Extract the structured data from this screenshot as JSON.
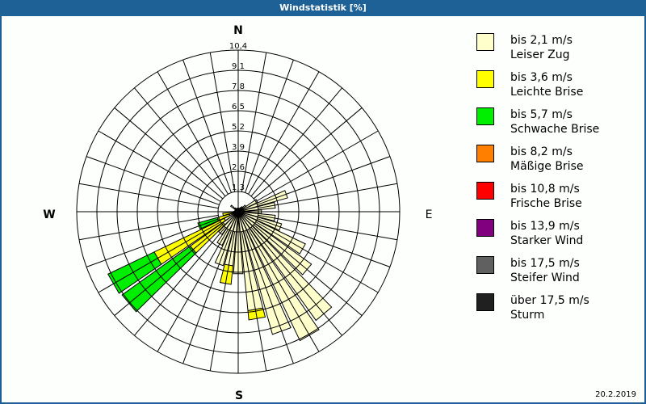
{
  "window": {
    "title": "Windstatistik [%]"
  },
  "footer": {
    "date": "20.2.2019"
  },
  "compass": {
    "n": "N",
    "e": "E",
    "s": "S",
    "w": "W"
  },
  "legend": [
    {
      "range": "bis 2,1 m/s",
      "name": "Leiser Zug",
      "color": "#ffffcc"
    },
    {
      "range": "bis 3,6 m/s",
      "name": "Leichte Brise",
      "color": "#ffff00"
    },
    {
      "range": "bis 5,7 m/s",
      "name": "Schwache Brise",
      "color": "#00ee00"
    },
    {
      "range": "bis 8,2 m/s",
      "name": "Mäßige Brise",
      "color": "#ff8000"
    },
    {
      "range": "bis 10,8 m/s",
      "name": "Frische Brise",
      "color": "#ff0000"
    },
    {
      "range": "bis 13,9 m/s",
      "name": "Starker Wind",
      "color": "#800080"
    },
    {
      "range": "bis 17,5 m/s",
      "name": "Steifer Wind",
      "color": "#606060"
    },
    {
      "range": "über 17,5 m/s",
      "name": "Sturm",
      "color": "#202020"
    }
  ],
  "chart_data": {
    "type": "polar-bar",
    "title": "Windstatistik [%]",
    "unit": "%",
    "radial_ticks": [
      "1,3",
      "2,6",
      "3,9",
      "5,2",
      "6,5",
      "7,8",
      "9,1",
      "10,4"
    ],
    "rmax": 10.4,
    "sector_width_deg": 10,
    "series": [
      "bis 2,1 m/s",
      "bis 3,6 m/s",
      "bis 5,7 m/s",
      "bis 8,2 m/s",
      "bis 10,8 m/s",
      "bis 13,9 m/s",
      "bis 17,5 m/s",
      "über 17,5 m/s"
    ],
    "directions": [
      {
        "deg": 0,
        "values": [
          0.2,
          0,
          0,
          0,
          0,
          0,
          0,
          0
        ]
      },
      {
        "deg": 10,
        "values": [
          0.2,
          0,
          0,
          0,
          0,
          0,
          0,
          0
        ]
      },
      {
        "deg": 20,
        "values": [
          0.2,
          0,
          0,
          0,
          0,
          0,
          0,
          0
        ]
      },
      {
        "deg": 30,
        "values": [
          0.3,
          0,
          0,
          0,
          0,
          0,
          0,
          0
        ]
      },
      {
        "deg": 40,
        "values": [
          0.4,
          0,
          0,
          0,
          0,
          0,
          0,
          0
        ]
      },
      {
        "deg": 50,
        "values": [
          0.6,
          0,
          0,
          0,
          0,
          0,
          0,
          0
        ]
      },
      {
        "deg": 60,
        "values": [
          1.4,
          0,
          0,
          0,
          0,
          0,
          0,
          0
        ]
      },
      {
        "deg": 70,
        "values": [
          3.3,
          0,
          0,
          0,
          0,
          0,
          0,
          0
        ]
      },
      {
        "deg": 80,
        "values": [
          2.4,
          0,
          0,
          0,
          0,
          0,
          0,
          0
        ]
      },
      {
        "deg": 90,
        "values": [
          1.5,
          0,
          0,
          0,
          0,
          0,
          0,
          0
        ]
      },
      {
        "deg": 100,
        "values": [
          2.4,
          0,
          0,
          0,
          0,
          0,
          0,
          0
        ]
      },
      {
        "deg": 110,
        "values": [
          2.9,
          0,
          0,
          0,
          0,
          0,
          0,
          0
        ]
      },
      {
        "deg": 120,
        "values": [
          4.8,
          0,
          0,
          0,
          0,
          0,
          0,
          0
        ]
      },
      {
        "deg": 130,
        "values": [
          5.8,
          0,
          0,
          0,
          0,
          0,
          0,
          0
        ]
      },
      {
        "deg": 140,
        "values": [
          8.6,
          0,
          0,
          0,
          0,
          0,
          0,
          0
        ]
      },
      {
        "deg": 150,
        "values": [
          9.2,
          0,
          0,
          0,
          0,
          0,
          0,
          0
        ]
      },
      {
        "deg": 160,
        "values": [
          8.2,
          0,
          0,
          0,
          0,
          0,
          0,
          0
        ]
      },
      {
        "deg": 170,
        "values": [
          6.4,
          0.6,
          0,
          0,
          0,
          0,
          0,
          0
        ]
      },
      {
        "deg": 180,
        "values": [
          4.0,
          0,
          0,
          0,
          0,
          0,
          0,
          0
        ]
      },
      {
        "deg": 190,
        "values": [
          3.5,
          1.2,
          0,
          0,
          0,
          0,
          0,
          0
        ]
      },
      {
        "deg": 200,
        "values": [
          3.6,
          0,
          0,
          0,
          0,
          0,
          0,
          0
        ]
      },
      {
        "deg": 210,
        "values": [
          2.4,
          0,
          0,
          0,
          0,
          0,
          0,
          0
        ]
      },
      {
        "deg": 220,
        "values": [
          1.8,
          0,
          0,
          0,
          0,
          0,
          0,
          0
        ]
      },
      {
        "deg": 230,
        "values": [
          1.2,
          2.6,
          5.4,
          0,
          0,
          0,
          0,
          0
        ]
      },
      {
        "deg": 240,
        "values": [
          1.0,
          5.0,
          3.3,
          0,
          0,
          0,
          0,
          0
        ]
      },
      {
        "deg": 250,
        "values": [
          0.6,
          0.8,
          1.3,
          0,
          0,
          0,
          0,
          0
        ]
      },
      {
        "deg": 260,
        "values": [
          0.4,
          0.6,
          0,
          0,
          0,
          0,
          0,
          0
        ]
      },
      {
        "deg": 270,
        "values": [
          0.3,
          0,
          0,
          0,
          0,
          0,
          0,
          0
        ]
      },
      {
        "deg": 280,
        "values": [
          0.2,
          0,
          0,
          0,
          0,
          0,
          0,
          0
        ]
      },
      {
        "deg": 290,
        "values": [
          0.2,
          0,
          0,
          0,
          0,
          0,
          0,
          0
        ]
      },
      {
        "deg": 300,
        "values": [
          0.2,
          0,
          0,
          0,
          0,
          0,
          0,
          0
        ]
      },
      {
        "deg": 310,
        "values": [
          0.6,
          0,
          0,
          0,
          0,
          0,
          0,
          0
        ]
      },
      {
        "deg": 320,
        "values": [
          0.3,
          0,
          0,
          0,
          0,
          0,
          0,
          0
        ]
      },
      {
        "deg": 330,
        "values": [
          0.2,
          0,
          0,
          0,
          0,
          0,
          0,
          0
        ]
      },
      {
        "deg": 340,
        "values": [
          0.2,
          0,
          0,
          0,
          0,
          0,
          0,
          0
        ]
      },
      {
        "deg": 350,
        "values": [
          0.2,
          0,
          0,
          0,
          0,
          0,
          0,
          0
        ]
      }
    ],
    "legend_position": "right",
    "grid": true
  }
}
